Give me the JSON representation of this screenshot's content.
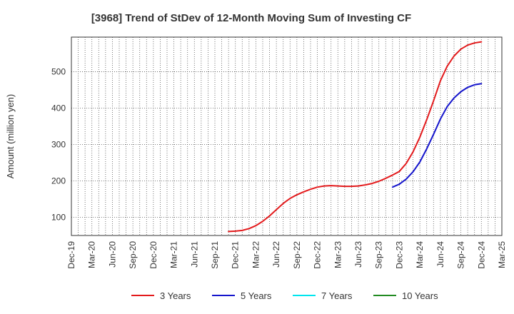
{
  "chart_data": {
    "type": "line",
    "title": "[3968]  Trend of StDev of 12-Month Moving Sum of Investing CF",
    "ylabel": "Amount (million yen)",
    "xlabel": "",
    "x_ticks": [
      "Dec-19",
      "Mar-20",
      "Jun-20",
      "Sep-20",
      "Dec-20",
      "Mar-21",
      "Jun-21",
      "Sep-21",
      "Dec-21",
      "Mar-22",
      "Jun-22",
      "Sep-22",
      "Dec-22",
      "Mar-23",
      "Jun-23",
      "Sep-23",
      "Dec-23",
      "Mar-24",
      "Jun-24",
      "Sep-24",
      "Dec-24",
      "Mar-25"
    ],
    "y_ticks": [
      100,
      200,
      300,
      400,
      500
    ],
    "ylim": [
      50,
      595
    ],
    "grid": true,
    "legend_position": "bottom",
    "series": [
      {
        "name": "3 Years",
        "color": "#e31a1c",
        "x": [
          "Nov-21",
          "Dec-21",
          "Jan-22",
          "Feb-22",
          "Mar-22",
          "Apr-22",
          "May-22",
          "Jun-22",
          "Jul-22",
          "Aug-22",
          "Sep-22",
          "Oct-22",
          "Nov-22",
          "Dec-22",
          "Jan-23",
          "Feb-23",
          "Mar-23",
          "Apr-23",
          "May-23",
          "Jun-23",
          "Jul-23",
          "Aug-23",
          "Sep-23",
          "Oct-23",
          "Nov-23",
          "Dec-23",
          "Jan-24",
          "Feb-24",
          "Mar-24",
          "Apr-24",
          "May-24",
          "Jun-24",
          "Jul-24",
          "Aug-24",
          "Sep-24",
          "Oct-24",
          "Nov-24",
          "Dec-24"
        ],
        "values": [
          61,
          62,
          64,
          69,
          77,
          89,
          104,
          121,
          138,
          152,
          162,
          170,
          177,
          183,
          186,
          187,
          186,
          185,
          185,
          186,
          189,
          193,
          199,
          207,
          216,
          226,
          248,
          280,
          320,
          368,
          420,
          475,
          515,
          543,
          562,
          573,
          579,
          582
        ]
      },
      {
        "name": "5 Years",
        "color": "#1515cc",
        "x": [
          "Nov-23",
          "Dec-23",
          "Jan-24",
          "Feb-24",
          "Mar-24",
          "Apr-24",
          "May-24",
          "Jun-24",
          "Jul-24",
          "Aug-24",
          "Sep-24",
          "Oct-24",
          "Nov-24",
          "Dec-24"
        ],
        "values": [
          183,
          191,
          205,
          225,
          252,
          288,
          328,
          370,
          404,
          428,
          445,
          457,
          464,
          467
        ]
      },
      {
        "name": "7 Years",
        "color": "#00e5ee",
        "x": [],
        "values": []
      },
      {
        "name": "10 Years",
        "color": "#228b22",
        "x": [],
        "values": []
      }
    ]
  }
}
